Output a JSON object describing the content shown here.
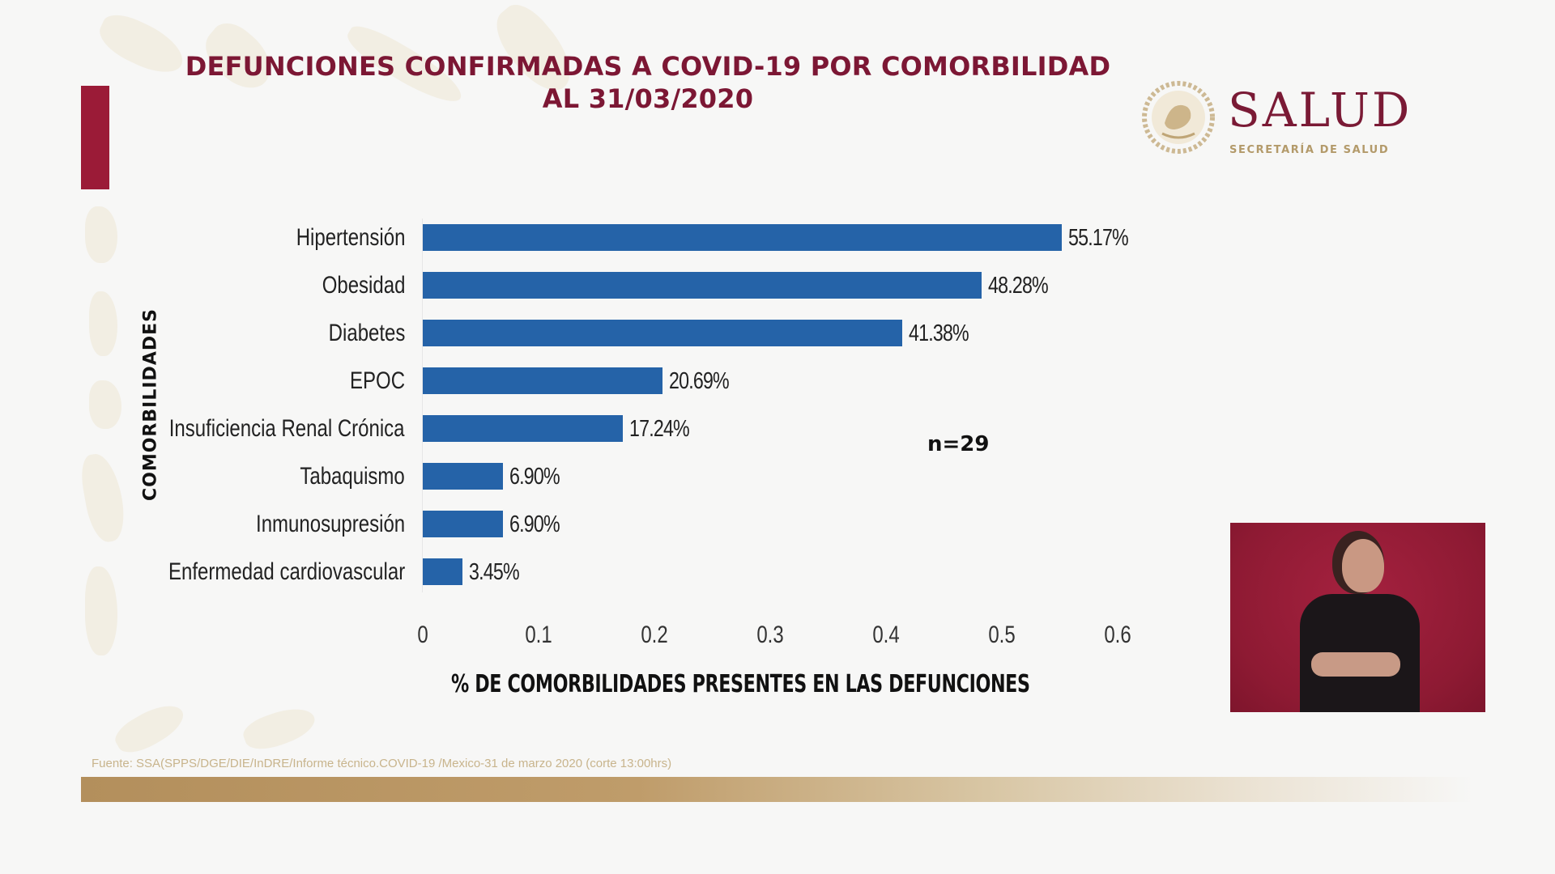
{
  "slide": {
    "title_line1": "DEFUNCIONES CONFIRMADAS A COVID-19 POR COMORBILIDAD",
    "title_line2": "AL 31/03/2020",
    "logo": {
      "seal_icon": "mexican-coat-of-arms-seal",
      "word": "SALUD",
      "subtitle": "SECRETARÍA DE SALUD"
    },
    "source": "Fuente: SSA(SPPS/DGE/DIE/InDRE/Informe técnico.COVID-19 /Mexico-31 de marzo 2020 (corte 13:00hrs)",
    "interpreter_video": "sign-language-interpreter",
    "colors": {
      "accent": "#9b1b37",
      "title": "#7c1734",
      "bar": "#2563a8",
      "gold": "#b39a6a"
    }
  },
  "chart_data": {
    "type": "bar",
    "orientation": "horizontal",
    "title": "DEFUNCIONES CONFIRMADAS A COVID-19 POR COMORBILIDAD AL 31/03/2020",
    "xlabel": "% DE COMORBILIDADES PRESENTES EN LAS DEFUNCIONES",
    "ylabel": "COMORBILIDADES",
    "categories": [
      "Hipertensión",
      "Obesidad",
      "Diabetes",
      "EPOC",
      "Insuficiencia Renal Crónica",
      "Tabaquismo",
      "Inmunosupresión",
      "Enfermedad cardiovascular"
    ],
    "values": [
      0.5517,
      0.4828,
      0.4138,
      0.2069,
      0.1724,
      0.069,
      0.069,
      0.0345
    ],
    "data_labels": [
      "55.17%",
      "48.28%",
      "41.38%",
      "20.69%",
      "17.24%",
      "6.90%",
      "6.90%",
      "3.45%"
    ],
    "xlim": [
      0,
      0.6
    ],
    "xticks": [
      "0",
      "0.1",
      "0.2",
      "0.3",
      "0.4",
      "0.5",
      "0.6"
    ],
    "annotation": "n=29",
    "grid": false,
    "legend": "none"
  }
}
